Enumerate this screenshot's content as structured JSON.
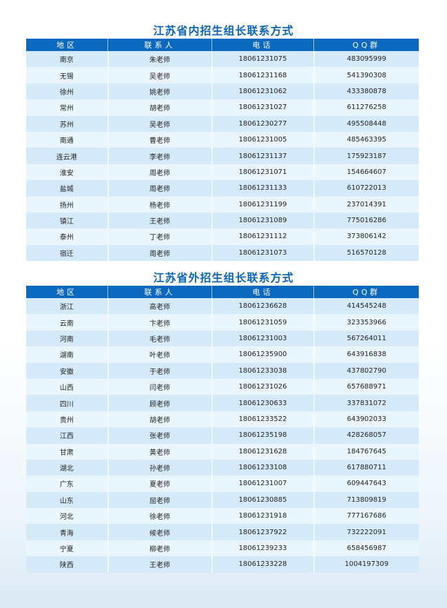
{
  "columns": [
    "地区",
    "联系人",
    "电话",
    "QQ群"
  ],
  "inside": {
    "title": "江苏省内招生组长联系方式",
    "rows": [
      [
        "南京",
        "朱老师",
        "18061231075",
        "483095999"
      ],
      [
        "无锡",
        "吴老师",
        "18061231168",
        "541390308"
      ],
      [
        "徐州",
        "姚老师",
        "18061231062",
        "433380878"
      ],
      [
        "常州",
        "胡老师",
        "18061231027",
        "611276258"
      ],
      [
        "苏州",
        "吴老师",
        "18061230277",
        "495508448"
      ],
      [
        "南通",
        "曹老师",
        "18061231005",
        "485463395"
      ],
      [
        "连云港",
        "李老师",
        "18061231137",
        "175923187"
      ],
      [
        "淮安",
        "周老师",
        "18061231071",
        "154664607"
      ],
      [
        "盐城",
        "周老师",
        "18061231133",
        "610722013"
      ],
      [
        "扬州",
        "杨老师",
        "18061231199",
        "237014391"
      ],
      [
        "镇江",
        "王老师",
        "18061231089",
        "775016286"
      ],
      [
        "泰州",
        "丁老师",
        "18061231112",
        "373806142"
      ],
      [
        "宿迁",
        "周老师",
        "18061231073",
        "516570128"
      ]
    ]
  },
  "outside": {
    "title": "江苏省外招生组长联系方式",
    "rows": [
      [
        "浙江",
        "高老师",
        "18061236628",
        "414545248"
      ],
      [
        "云南",
        "卞老师",
        "18061231059",
        "323353966"
      ],
      [
        "河南",
        "毛老师",
        "18061231003",
        "567264011"
      ],
      [
        "湖南",
        "叶老师",
        "18061235900",
        "643916838"
      ],
      [
        "安徽",
        "于老师",
        "18061233038",
        "437802790"
      ],
      [
        "山西",
        "闫老师",
        "18061231026",
        "657688971"
      ],
      [
        "四川",
        "顾老师",
        "18061230633",
        "337831072"
      ],
      [
        "贵州",
        "胡老师",
        "18061233522",
        "643902033"
      ],
      [
        "江西",
        "张老师",
        "18061235198",
        "428268057"
      ],
      [
        "甘肃",
        "黄老师",
        "18061231628",
        "184767645"
      ],
      [
        "湖北",
        "孙老师",
        "18061233108",
        "617880711"
      ],
      [
        "广东",
        "夏老师",
        "18061231007",
        "609447643"
      ],
      [
        "山东",
        "屈老师",
        "18061230885",
        "713809819"
      ],
      [
        "河北",
        "徐老师",
        "18061231918",
        "777167686"
      ],
      [
        "青海",
        "候老师",
        "18061237922",
        "732222091"
      ],
      [
        "宁夏",
        "柳老师",
        "18061239233",
        "658456987"
      ],
      [
        "陕西",
        "王老师",
        "18061233228",
        "1004197309"
      ]
    ]
  }
}
